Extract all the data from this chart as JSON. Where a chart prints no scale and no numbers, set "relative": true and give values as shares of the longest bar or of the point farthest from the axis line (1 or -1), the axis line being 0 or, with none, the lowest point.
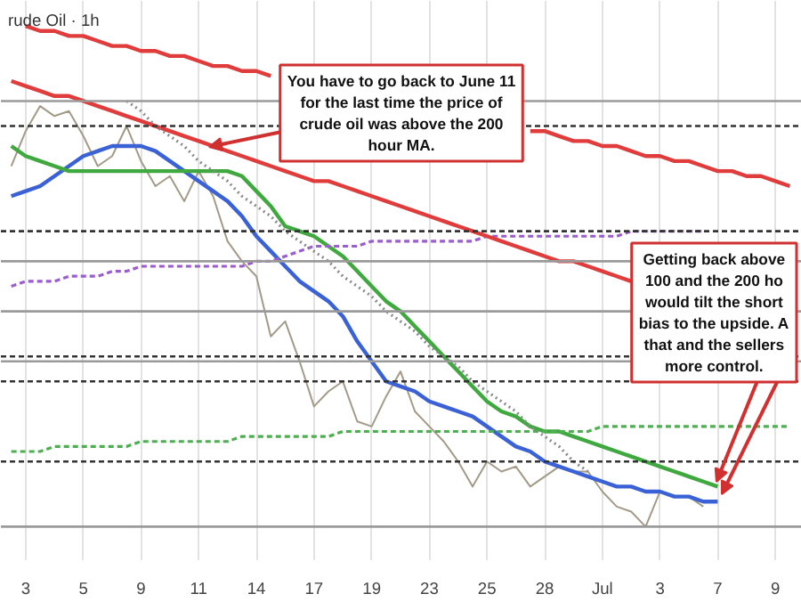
{
  "chart_data": {
    "type": "line",
    "title": "rude Oil · 1h",
    "relative": true,
    "grid": "x",
    "marker": "none",
    "categories": [
      null,
      "3",
      null,
      null,
      null,
      "5",
      null,
      null,
      null,
      "9",
      null,
      null,
      null,
      "11",
      null,
      null,
      null,
      "14",
      null,
      null,
      null,
      "17",
      null,
      null,
      null,
      "19",
      null,
      null,
      null,
      "23",
      null,
      null,
      null,
      "25",
      null,
      null,
      null,
      "28",
      null,
      null,
      null,
      "Jul",
      null,
      null,
      null,
      "3",
      null,
      null,
      null,
      "7",
      null,
      null,
      null,
      "9",
      null
    ],
    "series": [
      {
        "color": "#a39a88",
        "line_style": "solid",
        "values": [
          0.72,
          0.79,
          0.84,
          0.82,
          0.83,
          0.78,
          0.72,
          0.74,
          0.8,
          0.73,
          0.68,
          0.7,
          0.65,
          0.71,
          0.66,
          0.57,
          0.53,
          0.5,
          0.38,
          0.41,
          0.33,
          0.24,
          0.27,
          0.29,
          0.21,
          0.2,
          0.26,
          0.31,
          0.23,
          0.2,
          0.17,
          0.13,
          0.08,
          0.13,
          0.11,
          0.12,
          0.08,
          0.1,
          0.12,
          0.11,
          0.11,
          0.07,
          0.04,
          0.03,
          0.0,
          0.07,
          0.06,
          0.06,
          0.04,
          null,
          null,
          null,
          null,
          null,
          null
        ]
      },
      {
        "color": "#3a62d6",
        "line_style": "solid",
        "values": [
          0.66,
          0.67,
          0.68,
          0.7,
          0.72,
          0.74,
          0.75,
          0.76,
          0.76,
          0.76,
          0.75,
          0.73,
          0.71,
          0.69,
          0.67,
          0.65,
          0.62,
          0.58,
          0.55,
          0.52,
          0.49,
          0.47,
          0.45,
          0.42,
          0.37,
          0.33,
          0.29,
          0.28,
          0.27,
          0.25,
          0.24,
          0.23,
          0.22,
          0.2,
          0.18,
          0.16,
          0.15,
          0.13,
          0.12,
          0.11,
          0.1,
          0.09,
          0.08,
          0.08,
          0.07,
          0.07,
          0.06,
          0.06,
          0.05,
          0.05,
          null,
          null,
          null,
          null,
          null
        ]
      },
      {
        "color": "#3fa83f",
        "line_style": "solid",
        "values": [
          0.76,
          0.74,
          0.73,
          0.72,
          0.71,
          0.71,
          0.71,
          0.71,
          0.71,
          0.71,
          0.71,
          0.71,
          0.71,
          0.71,
          0.71,
          0.71,
          0.7,
          0.67,
          0.64,
          0.6,
          0.59,
          0.58,
          0.56,
          0.54,
          0.51,
          0.48,
          0.45,
          0.43,
          0.4,
          0.37,
          0.34,
          0.31,
          0.28,
          0.25,
          0.23,
          0.22,
          0.2,
          0.19,
          0.19,
          0.18,
          0.17,
          0.16,
          0.15,
          0.14,
          0.13,
          0.12,
          0.11,
          0.1,
          0.09,
          0.08,
          null,
          null,
          null,
          null,
          null
        ]
      },
      {
        "color": "#9b5cd0",
        "line_style": "dashed",
        "values": [
          0.48,
          0.49,
          0.49,
          0.49,
          0.5,
          0.5,
          0.5,
          0.51,
          0.51,
          0.52,
          0.52,
          0.52,
          0.52,
          0.52,
          0.52,
          0.52,
          0.52,
          0.53,
          0.53,
          0.54,
          0.55,
          0.56,
          0.56,
          0.56,
          0.56,
          0.57,
          0.57,
          0.57,
          0.57,
          0.57,
          0.57,
          0.57,
          0.57,
          0.58,
          0.58,
          0.58,
          0.58,
          0.58,
          0.58,
          0.58,
          0.58,
          0.58,
          0.58,
          0.59,
          0.59,
          0.59,
          0.59,
          0.59,
          0.59,
          null,
          null,
          null,
          null,
          null,
          null
        ]
      },
      {
        "color": "#4caf50",
        "line_style": "dashed",
        "values": [
          0.15,
          0.15,
          0.15,
          0.16,
          0.16,
          0.16,
          0.16,
          0.16,
          0.16,
          0.17,
          0.17,
          0.17,
          0.17,
          0.17,
          0.17,
          0.17,
          0.18,
          0.18,
          0.18,
          0.18,
          0.18,
          0.18,
          0.18,
          0.19,
          0.19,
          0.19,
          0.19,
          0.19,
          0.19,
          0.19,
          0.19,
          0.19,
          0.19,
          0.19,
          0.19,
          0.19,
          0.19,
          0.19,
          0.19,
          0.19,
          0.19,
          0.2,
          0.2,
          0.2,
          0.2,
          0.2,
          0.2,
          0.2,
          0.2,
          0.2,
          0.2,
          0.2,
          0.2,
          0.2,
          0.2
        ]
      },
      {
        "color": "#e03c3c",
        "line_style": "solid",
        "values": [
          null,
          1.0,
          0.99,
          0.99,
          0.98,
          0.98,
          0.97,
          0.96,
          0.96,
          0.95,
          0.95,
          0.94,
          0.94,
          0.93,
          0.92,
          0.92,
          0.91,
          0.91,
          0.9,
          null,
          null,
          null,
          null,
          null,
          null,
          null,
          null,
          null,
          null,
          null,
          null,
          null,
          null,
          null,
          null,
          null,
          0.79,
          0.79,
          0.78,
          0.77,
          0.77,
          0.76,
          0.76,
          0.75,
          0.74,
          0.74,
          0.73,
          0.73,
          0.72,
          0.71,
          0.71,
          0.7,
          0.7,
          0.69,
          0.68
        ]
      },
      {
        "color": "#e03c3c",
        "line_style": "solid",
        "values": [
          0.89,
          0.88,
          0.87,
          0.86,
          0.86,
          0.85,
          0.84,
          0.83,
          0.82,
          0.81,
          0.8,
          0.79,
          0.78,
          0.77,
          0.76,
          0.75,
          0.74,
          0.73,
          0.72,
          0.71,
          0.7,
          0.69,
          0.69,
          0.68,
          0.67,
          0.66,
          0.65,
          0.64,
          0.63,
          0.62,
          0.61,
          0.6,
          0.59,
          0.58,
          0.57,
          0.56,
          0.55,
          0.54,
          0.53,
          0.53,
          0.52,
          0.51,
          0.5,
          0.49,
          null,
          null,
          null,
          null,
          null,
          null,
          null,
          null,
          null,
          null,
          null
        ]
      },
      {
        "color": "#8a8a8a",
        "line_style": "dotted",
        "values": [
          null,
          null,
          null,
          null,
          null,
          null,
          null,
          null,
          0.85,
          0.83,
          0.8,
          0.78,
          0.76,
          0.73,
          0.71,
          0.69,
          0.66,
          0.64,
          0.62,
          0.59,
          0.57,
          0.55,
          0.53,
          0.5,
          0.48,
          0.46,
          0.43,
          0.41,
          0.39,
          0.36,
          0.34,
          0.32,
          0.29,
          0.27,
          0.25,
          0.23,
          0.2,
          0.18,
          0.16,
          0.13,
          0.11,
          null,
          null,
          null,
          null,
          null,
          null,
          null,
          null,
          null,
          null,
          null,
          null,
          null,
          null
        ]
      }
    ],
    "ref_lines": [
      {
        "axis": "y",
        "value": 0.8,
        "color": "#333333",
        "line_style": "dashed"
      },
      {
        "axis": "y",
        "value": 0.59,
        "color": "#333333",
        "line_style": "dashed"
      },
      {
        "axis": "y",
        "value": 0.34,
        "color": "#333333",
        "line_style": "dashed"
      },
      {
        "axis": "y",
        "value": 0.29,
        "color": "#333333",
        "line_style": "dashed"
      },
      {
        "axis": "y",
        "value": 0.13,
        "color": "#333333",
        "line_style": "dashed"
      },
      {
        "axis": "y",
        "value": 0.85,
        "color": "#9a9a9a",
        "line_style": "solid"
      },
      {
        "axis": "y",
        "value": 0.53,
        "color": "#9a9a9a",
        "line_style": "solid"
      },
      {
        "axis": "y",
        "value": 0.43,
        "color": "#9a9a9a",
        "line_style": "solid"
      },
      {
        "axis": "y",
        "value": 0.33,
        "color": "#9a9a9a",
        "line_style": "solid"
      },
      {
        "axis": "y",
        "value": 0.0,
        "color": "#9a9a9a",
        "line_style": "solid"
      }
    ],
    "annotations": [
      "You have to go back to June 11\nfor the last time the price of\ncrude oil was above the 200\nhour MA.",
      "Getting back above\n100 and the 200 ho\nwould tilt the short\nbias to the upside. A\nthat and the sellers\nmore control."
    ]
  }
}
